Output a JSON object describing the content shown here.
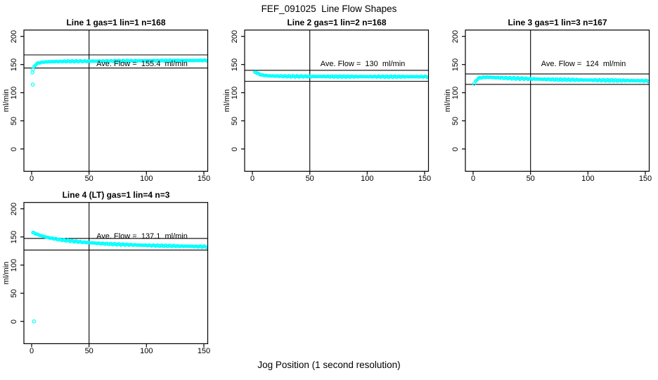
{
  "title": "FEF_091025  Line Flow Shapes",
  "xlabel": "Jog Position (1 second resolution)",
  "ylabel": "ml/min",
  "axes": {
    "x_ticks": [
      "0",
      "50",
      "100",
      "150"
    ],
    "x_tick_values": [
      0,
      50,
      100,
      150
    ],
    "y_ticks": [
      "0",
      "50",
      "100",
      "150",
      "200"
    ],
    "y_tick_values": [
      0,
      50,
      100,
      150,
      200
    ]
  },
  "marker_color": "#00FFFF",
  "chart_data": [
    {
      "type": "scatter",
      "title": "Line 1 gas=1 lin=1 n=168",
      "n": 168,
      "ave_flow": 155.4,
      "annotation": "Ave. Flow =  155.4  ml/min",
      "upper_limit": 167.1,
      "lower_limit": 143.7,
      "vline_x": 50,
      "xlim": [
        0,
        150
      ],
      "ylim": [
        0,
        200
      ],
      "marker": "open-circle",
      "color": "#00FFFF",
      "jitter": 0.8,
      "outliers": [
        [
          1,
          114.5
        ],
        [
          0.7,
          136
        ],
        [
          1.3,
          141.5
        ]
      ],
      "profile": [
        [
          2,
          145.5
        ],
        [
          3,
          148.5
        ],
        [
          4,
          150.5
        ],
        [
          5,
          152
        ],
        [
          7,
          153.3
        ],
        [
          10,
          154.2
        ],
        [
          14,
          154.8
        ],
        [
          20,
          155.2
        ],
        [
          30,
          155.6
        ],
        [
          45,
          155.9
        ],
        [
          60,
          156.1
        ],
        [
          80,
          156.4
        ],
        [
          100,
          156.7
        ],
        [
          125,
          157
        ],
        [
          152,
          157.3
        ]
      ]
    },
    {
      "type": "scatter",
      "title": "Line 2 gas=1 lin=2 n=168",
      "n": 168,
      "ave_flow": 130,
      "annotation": "Ave. Flow =  130  ml/min",
      "upper_limit": 139.8,
      "lower_limit": 120.3,
      "vline_x": 50,
      "xlim": [
        0,
        150
      ],
      "ylim": [
        0,
        200
      ],
      "marker": "open-circle",
      "color": "#00FFFF",
      "jitter": 1.0,
      "outliers": [],
      "profile": [
        [
          2,
          135.5
        ],
        [
          3,
          136.5
        ],
        [
          4,
          135.3
        ],
        [
          5,
          133.8
        ],
        [
          6,
          132.8
        ],
        [
          8,
          131.5
        ],
        [
          10,
          130.7
        ],
        [
          14,
          130
        ],
        [
          20,
          129.5
        ],
        [
          30,
          129.1
        ],
        [
          50,
          128.8
        ],
        [
          75,
          128.6
        ],
        [
          100,
          128.5
        ],
        [
          125,
          128.4
        ],
        [
          152,
          128.3
        ]
      ]
    },
    {
      "type": "scatter",
      "title": "Line 3 gas=1 lin=3 n=167",
      "n": 167,
      "ave_flow": 124,
      "annotation": "Ave. Flow =  124  ml/min",
      "upper_limit": 133.3,
      "lower_limit": 114.7,
      "vline_x": 50,
      "xlim": [
        0,
        150
      ],
      "ylim": [
        0,
        200
      ],
      "marker": "open-circle",
      "color": "#00FFFF",
      "jitter": 1.2,
      "outliers": [
        [
          1,
          116
        ]
      ],
      "profile": [
        [
          2,
          119
        ],
        [
          3,
          122.5
        ],
        [
          4,
          124.8
        ],
        [
          6,
          126.4
        ],
        [
          8,
          127.1
        ],
        [
          12,
          127.4
        ],
        [
          16,
          127.2
        ],
        [
          20,
          126.8
        ],
        [
          26,
          126.2
        ],
        [
          34,
          125.6
        ],
        [
          42,
          125
        ],
        [
          50,
          124.5
        ],
        [
          62,
          123.8
        ],
        [
          75,
          123.2
        ],
        [
          90,
          122.7
        ],
        [
          105,
          122.2
        ],
        [
          120,
          121.8
        ],
        [
          135,
          121.5
        ],
        [
          152,
          121.1
        ]
      ]
    },
    {
      "type": "scatter",
      "title": "Line 4 (LT) gas=1 lin=4 n=3",
      "n": 3,
      "ave_flow": 137.1,
      "annotation": "Ave. Flow =  137.1  ml/min",
      "upper_limit": 147.4,
      "lower_limit": 126.8,
      "vline_x": 50,
      "xlim": [
        0,
        150
      ],
      "ylim": [
        0,
        200
      ],
      "marker": "open-circle",
      "color": "#00FFFF",
      "jitter": 1.0,
      "outliers": [
        [
          2,
          0
        ]
      ],
      "profile": [
        [
          1,
          157.5
        ],
        [
          2,
          157
        ],
        [
          3,
          156.2
        ],
        [
          5,
          154.5
        ],
        [
          7,
          153
        ],
        [
          9,
          151.7
        ],
        [
          12,
          150
        ],
        [
          15,
          148.6
        ],
        [
          18,
          147.4
        ],
        [
          22,
          146
        ],
        [
          26,
          144.8
        ],
        [
          30,
          143.8
        ],
        [
          35,
          142.6
        ],
        [
          40,
          141.6
        ],
        [
          45,
          140.6
        ],
        [
          50,
          139.8
        ],
        [
          56,
          138.9
        ],
        [
          63,
          138
        ],
        [
          70,
          137.3
        ],
        [
          78,
          136.6
        ],
        [
          86,
          136
        ],
        [
          95,
          135.4
        ],
        [
          105,
          134.8
        ],
        [
          115,
          134.3
        ],
        [
          125,
          133.8
        ],
        [
          137,
          133.3
        ],
        [
          152,
          132.7
        ]
      ]
    }
  ]
}
